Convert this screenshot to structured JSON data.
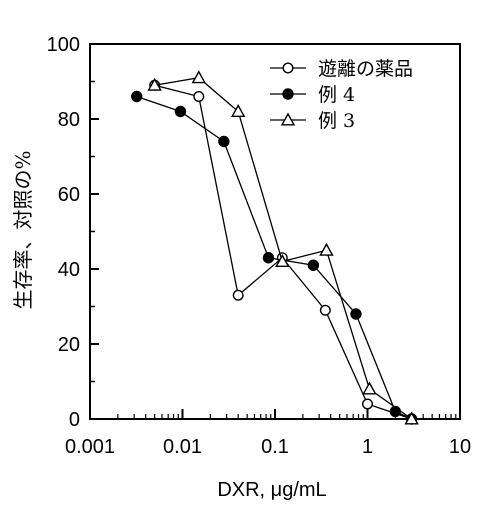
{
  "chart_data": {
    "type": "line",
    "xlabel": "DXR, μg/mL",
    "ylabel": "生存率、対照の%",
    "x_scale": "log",
    "xlim": [
      0.001,
      10
    ],
    "ylim": [
      0,
      100
    ],
    "x_ticks": [
      "0.001",
      "0.01",
      "0.1",
      "1",
      "10"
    ],
    "y_ticks": [
      "0",
      "20",
      "40",
      "60",
      "80",
      "100"
    ],
    "grid": false,
    "legend_position": "top-right",
    "series": [
      {
        "name": "遊離の薬品",
        "marker": "open-circle",
        "x": [
          0.005,
          0.015,
          0.04,
          0.12,
          0.35,
          1.0,
          3.0
        ],
        "y": [
          89,
          86,
          33,
          43,
          29,
          4,
          0
        ]
      },
      {
        "name": "例 4",
        "marker": "filled-circle",
        "x": [
          0.0032,
          0.0095,
          0.028,
          0.085,
          0.26,
          0.75,
          2.0,
          3.0
        ],
        "y": [
          86,
          82,
          74,
          43,
          41,
          28,
          2,
          0
        ]
      },
      {
        "name": "例 3",
        "marker": "open-triangle",
        "x": [
          0.005,
          0.015,
          0.04,
          0.12,
          0.36,
          1.05,
          3.0
        ],
        "y": [
          89,
          91,
          82,
          42,
          45,
          8,
          0
        ]
      }
    ]
  }
}
